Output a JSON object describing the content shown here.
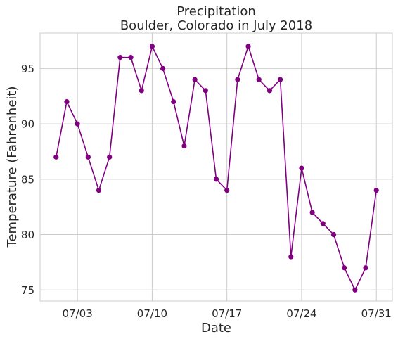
{
  "chart_data": {
    "type": "line",
    "title": [
      "Precipitation",
      "Boulder, Colorado in July 2018"
    ],
    "xlabel": "Date",
    "ylabel": "Temperature (Fahrenheit)",
    "x": [
      "2018-07-01",
      "2018-07-02",
      "2018-07-03",
      "2018-07-04",
      "2018-07-05",
      "2018-07-06",
      "2018-07-07",
      "2018-07-08",
      "2018-07-09",
      "2018-07-10",
      "2018-07-11",
      "2018-07-12",
      "2018-07-13",
      "2018-07-14",
      "2018-07-15",
      "2018-07-16",
      "2018-07-17",
      "2018-07-18",
      "2018-07-19",
      "2018-07-20",
      "2018-07-21",
      "2018-07-22",
      "2018-07-23",
      "2018-07-24",
      "2018-07-25",
      "2018-07-26",
      "2018-07-27",
      "2018-07-28",
      "2018-07-29",
      "2018-07-30",
      "2018-07-31"
    ],
    "series": [
      {
        "values": [
          87,
          92,
          90,
          87,
          84,
          87,
          96,
          96,
          93,
          97,
          95,
          92,
          88,
          94,
          93,
          85,
          84,
          94,
          97,
          94,
          93,
          94,
          78,
          86,
          82,
          81,
          80,
          77,
          75,
          77,
          84
        ]
      }
    ],
    "xticks": [
      {
        "date": "2018-07-03",
        "label": "07/03"
      },
      {
        "date": "2018-07-10",
        "label": "07/10"
      },
      {
        "date": "2018-07-17",
        "label": "07/17"
      },
      {
        "date": "2018-07-24",
        "label": "07/24"
      },
      {
        "date": "2018-07-31",
        "label": "07/31"
      }
    ],
    "yticks": [
      75,
      80,
      85,
      90,
      95
    ],
    "xlim": [
      "2018-06-29T12:00",
      "2018-08-01T12:00"
    ],
    "ylim": [
      74,
      98.2
    ],
    "grid": true,
    "line_color": "#800080"
  }
}
